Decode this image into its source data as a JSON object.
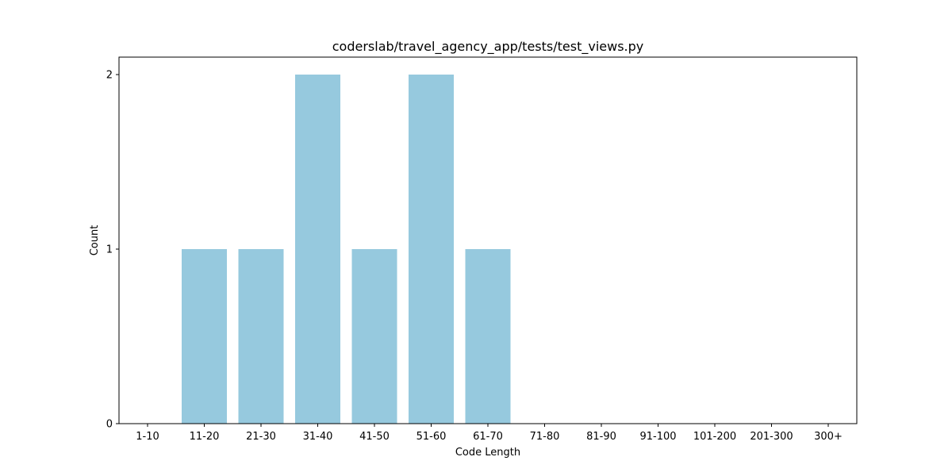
{
  "chart_data": {
    "type": "bar",
    "title": "coderslab/travel_agency_app/tests/test_views.py",
    "xlabel": "Code Length",
    "ylabel": "Count",
    "categories": [
      "1-10",
      "11-20",
      "21-30",
      "31-40",
      "41-50",
      "51-60",
      "61-70",
      "71-80",
      "81-90",
      "91-100",
      "101-200",
      "201-300",
      "300+"
    ],
    "values": [
      0,
      1,
      1,
      2,
      1,
      2,
      1,
      0,
      0,
      0,
      0,
      0,
      0
    ],
    "ylim": [
      0,
      2.1
    ],
    "yticks": [
      0,
      1,
      2
    ],
    "bar_color": "#96c9de",
    "grid": false,
    "legend": "none"
  }
}
